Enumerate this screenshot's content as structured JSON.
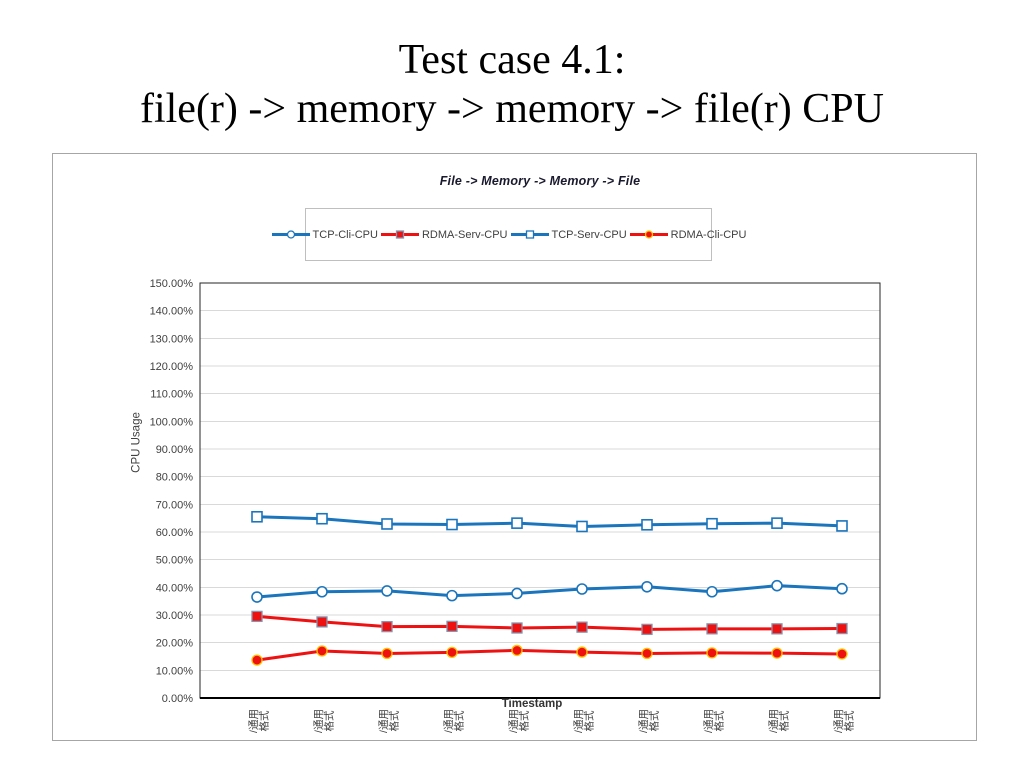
{
  "slide": {
    "title_line1": "Test case 4.1:",
    "title_line2": "file(r) -> memory -> memory -> file(r) CPU"
  },
  "chart_data": {
    "type": "line",
    "title": "File -> Memory -> Memory -> File",
    "xlabel": "Timestamp",
    "ylabel": "CPU Usage",
    "ylim": [
      0,
      150
    ],
    "y_tick_step": 10,
    "y_tick_format": "percent_2dp",
    "grid": true,
    "legend_position": "top",
    "categories": [
      "/通用格式",
      "/通用格式",
      "/通用格式",
      "/通用格式",
      "/通用格式",
      "/通用格式",
      "/通用格式",
      "/通用格式",
      "/通用格式",
      "/通用格式"
    ],
    "series": [
      {
        "name": "TCP-Cli-CPU",
        "color": "#1b75bc",
        "marker": "circle-open",
        "marker_outline": "#1b75bc",
        "values": [
          36.5,
          38.4,
          38.7,
          37.0,
          37.8,
          39.4,
          40.2,
          38.4,
          40.6,
          39.5
        ]
      },
      {
        "name": "RDMA-Serv-CPU",
        "color": "#ee1111",
        "marker": "square-filled",
        "marker_outline": "#8496b0",
        "values": [
          29.5,
          27.5,
          25.8,
          25.9,
          25.3,
          25.6,
          24.8,
          25.0,
          25.0,
          25.1
        ]
      },
      {
        "name": "TCP-Serv-CPU",
        "color": "#1b75bc",
        "marker": "square-open",
        "marker_outline": "#1b75bc",
        "values": [
          65.5,
          64.8,
          62.9,
          62.7,
          63.2,
          62.0,
          62.6,
          63.0,
          63.2,
          62.2
        ]
      },
      {
        "name": "RDMA-Cli-CPU",
        "color": "#ee1111",
        "marker": "circle-filled",
        "marker_outline": "#ffc000",
        "values": [
          13.7,
          17.0,
          16.1,
          16.5,
          17.2,
          16.6,
          16.1,
          16.3,
          16.2,
          15.9
        ]
      }
    ],
    "colors": {
      "gridline": "#d9d9d9",
      "plot_border": "#262626",
      "axis_line": "#000000",
      "tick_text": "#404040"
    }
  }
}
